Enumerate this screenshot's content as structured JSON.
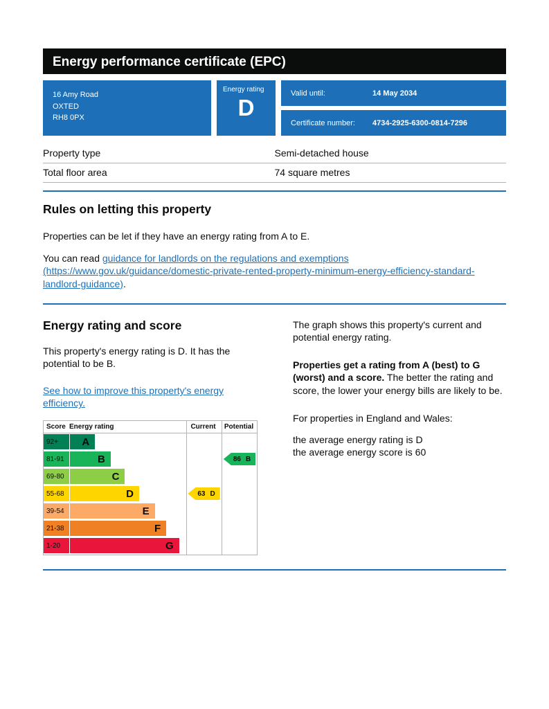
{
  "header": {
    "title": "Energy performance certificate (EPC)"
  },
  "summary": {
    "address_lines": [
      "16 Amy Road",
      "OXTED",
      "RH8 0PX"
    ],
    "rating_label": "Energy rating",
    "rating_value": "D",
    "valid_until_label": "Valid until:",
    "valid_until_value": "14 May 2034",
    "certificate_number_label": "Certificate number:",
    "certificate_number_value": "4734-2925-6300-0814-7296",
    "rows": [
      {
        "label": "Property type",
        "value": "Semi-detached house"
      },
      {
        "label": "Total floor area",
        "value": "74 square metres"
      }
    ]
  },
  "rules_section": {
    "heading": "Rules on letting this property",
    "para1": "Properties can be let if they have an energy rating from A to E.",
    "para2_prefix": "You can read ",
    "para2_link": "guidance for landlords on the regulations and exemptions (https://www.gov.uk/guidance/domestic-private-rented-property-minimum-energy-efficiency-standard-landlord-guidance)",
    "para2_suffix": "."
  },
  "rating_section": {
    "heading": "Energy rating and score",
    "para1": "This property's energy rating is D. It has the potential to be B.",
    "improve_link": "See how to improve this property's energy efficiency.",
    "right_para1": "The graph shows this property's current and potential energy rating.",
    "right_para2_bold": "Properties get a rating from A (best) to G (worst) and a score.",
    "right_para2_rest": " The better the rating and score, the lower your energy bills are likely to be.",
    "right_para3": "For properties in England and Wales:",
    "right_para4_line1": "the average energy rating is D",
    "right_para4_line2": "the average energy score is 60"
  },
  "chart_data": {
    "type": "bar",
    "title": "Energy rating and score graph",
    "columns": [
      "Score",
      "Energy rating",
      "Current",
      "Potential"
    ],
    "bands": [
      {
        "score": "92+",
        "letter": "A",
        "color": "#008054",
        "width_pct": 36
      },
      {
        "score": "81-91",
        "letter": "B",
        "color": "#19b459",
        "width_pct": 47
      },
      {
        "score": "69-80",
        "letter": "C",
        "color": "#8dce46",
        "width_pct": 57
      },
      {
        "score": "55-68",
        "letter": "D",
        "color": "#ffd500",
        "width_pct": 67
      },
      {
        "score": "39-54",
        "letter": "E",
        "color": "#fcaa65",
        "width_pct": 78
      },
      {
        "score": "21-38",
        "letter": "F",
        "color": "#ef8023",
        "width_pct": 86
      },
      {
        "score": "1-20",
        "letter": "G",
        "color": "#e9153b",
        "width_pct": 95
      }
    ],
    "current": {
      "score": 63,
      "letter": "D",
      "band_index": 3,
      "color": "#ffd500"
    },
    "potential": {
      "score": 86,
      "letter": "B",
      "band_index": 1,
      "color": "#19b459"
    }
  },
  "colors": {
    "accent_blue": "#1d70b8",
    "header_black": "#0b0c0c",
    "border_grey": "#b1b4b6"
  }
}
